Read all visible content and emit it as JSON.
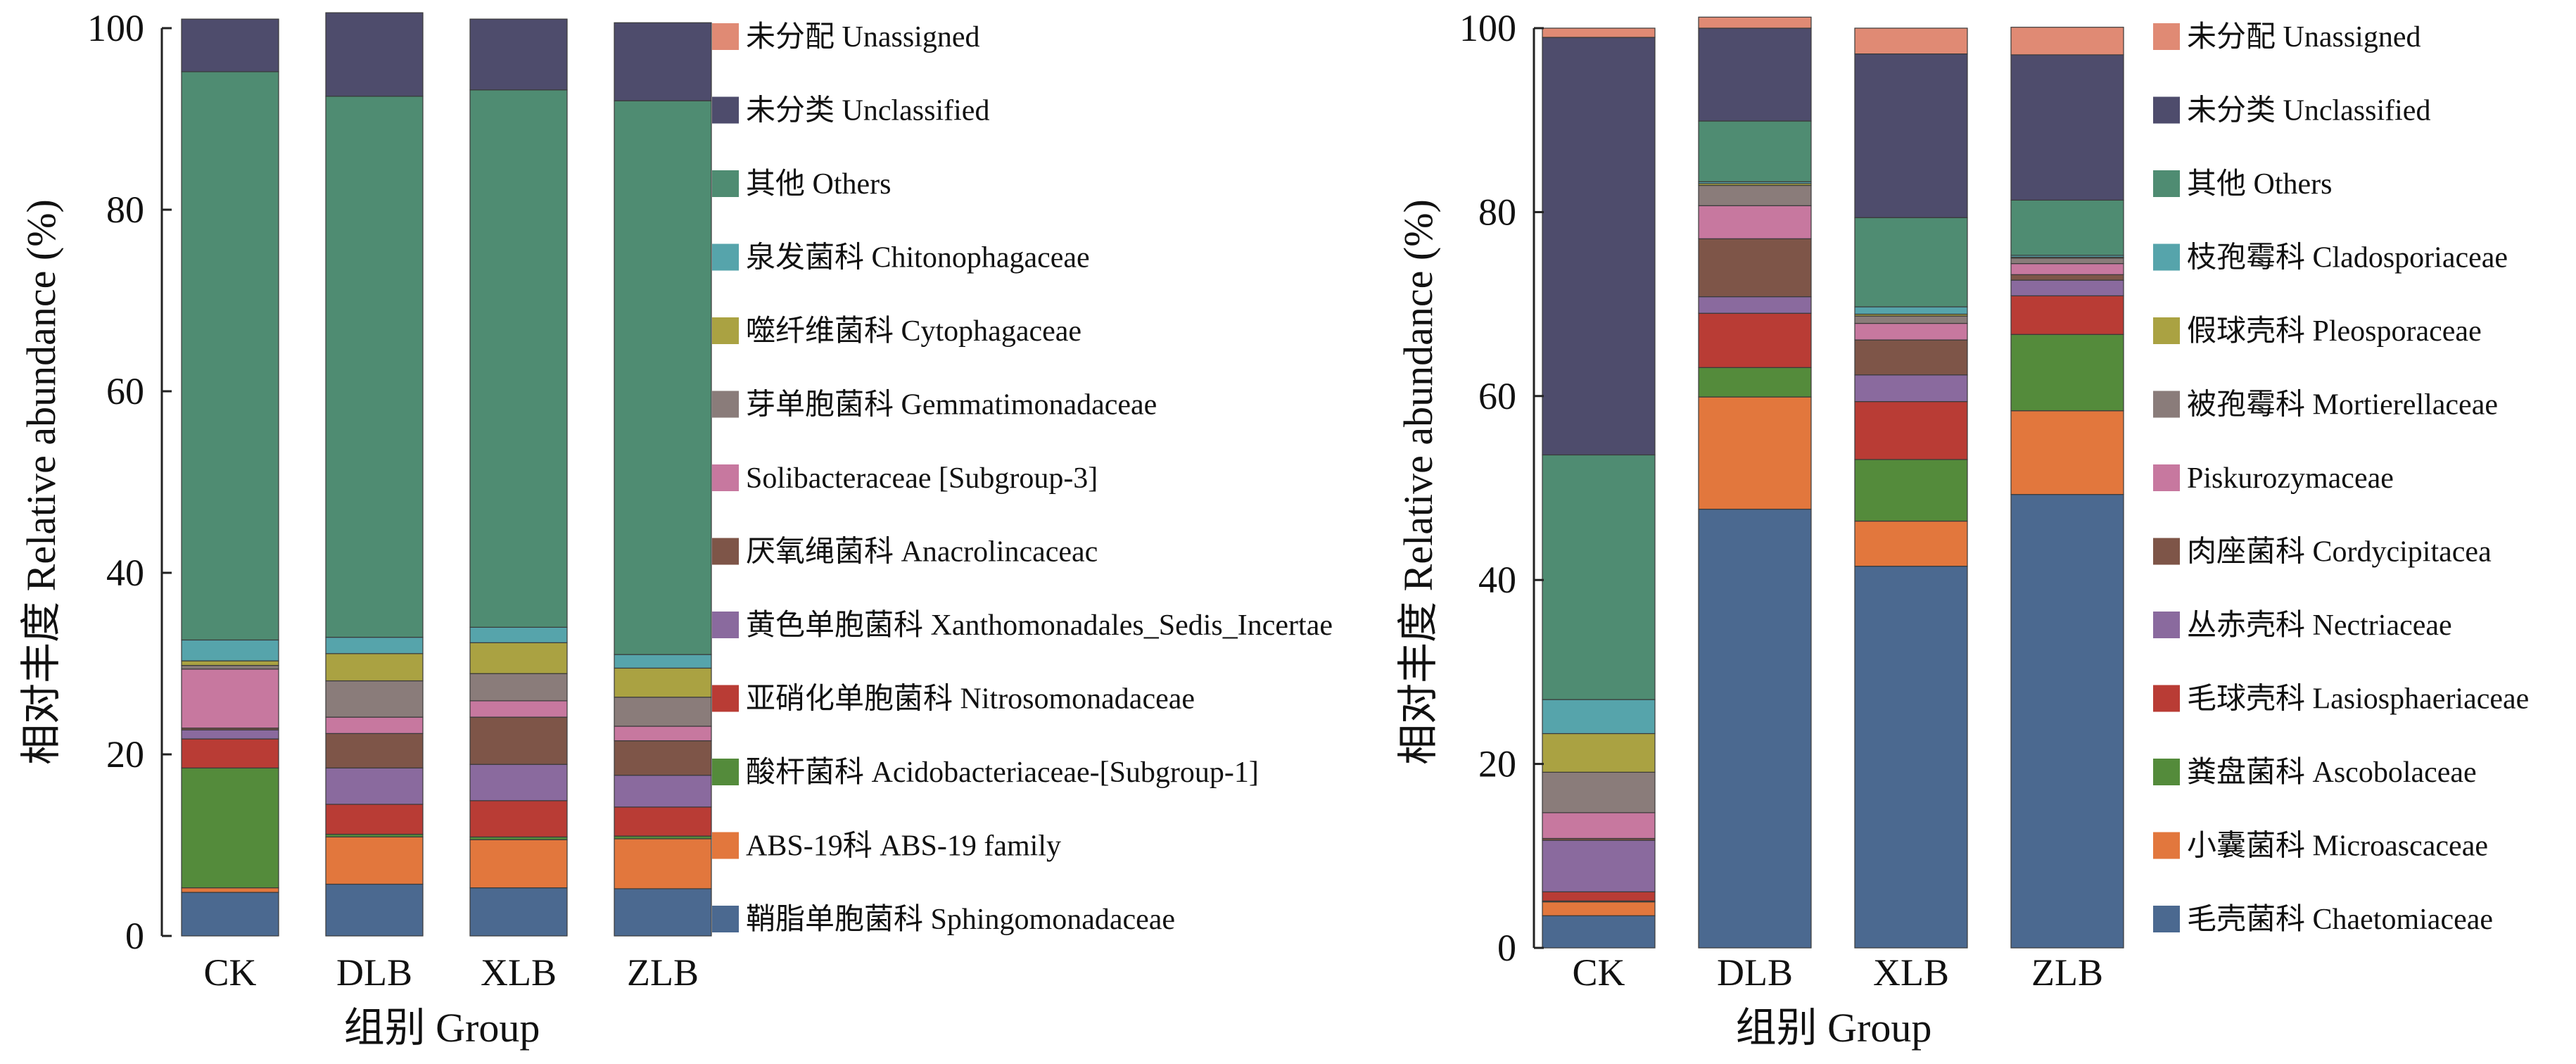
{
  "chart_data": [
    {
      "type": "bar",
      "stacked": true,
      "categories": [
        "CK",
        "DLB",
        "XLB",
        "ZLB"
      ],
      "xlabel": "组别 Group",
      "ylabel": "相对丰度 Relative abundance (%)",
      "ylim": [
        0,
        100
      ],
      "yticks": [
        "0",
        "20",
        "40",
        "60",
        "80",
        "100"
      ],
      "legend_position": "right",
      "series": [
        {
          "name": "鞘脂单胞菌科 Sphingomonadaceae",
          "color": "#4b6990",
          "values": [
            4.8,
            5.7,
            5.3,
            5.2
          ]
        },
        {
          "name": "ABS-19科 ABS-19 family",
          "color": "#e2773d",
          "values": [
            0.5,
            5.2,
            5.3,
            5.5
          ]
        },
        {
          "name": "酸杆菌科 Acidobacteriaceae-[Subgroup-1]",
          "color": "#548b3b",
          "values": [
            13.2,
            0.3,
            0.3,
            0.3
          ]
        },
        {
          "name": "亚硝化单胞菌科 Nitrosomonadaceae",
          "color": "#b93c35",
          "values": [
            3.2,
            3.3,
            4.0,
            3.2
          ]
        },
        {
          "name": "黄色单胞菌科 Xanthomonadales_Sedis_Incertae",
          "color": "#8a6a9e",
          "values": [
            1.0,
            4.0,
            4.0,
            3.5
          ]
        },
        {
          "name": "厌氧绳菌科 Anacrolincaceac",
          "color": "#7e5548",
          "values": [
            0.2,
            3.8,
            5.2,
            3.8
          ]
        },
        {
          "name": "Solibacteraceae [Subgroup-3]",
          "color": "#c7789f",
          "values": [
            6.5,
            1.8,
            1.8,
            1.6
          ]
        },
        {
          "name": "芽单胞菌科 Gemmatimonadaceae",
          "color": "#8a7c7a",
          "values": [
            0.4,
            4.0,
            3.0,
            3.2
          ]
        },
        {
          "name": "噬纤维菌科 Cytophagaceae",
          "color": "#aaa242",
          "values": [
            0.5,
            3.0,
            3.4,
            3.2
          ]
        },
        {
          "name": "泉发菌科 Chitonophagaceae",
          "color": "#56a4ab",
          "values": [
            2.3,
            1.8,
            1.7,
            1.5
          ]
        },
        {
          "name": "其他 Others",
          "color": "#4f8c72",
          "values": [
            62.6,
            59.6,
            59.2,
            61.0
          ]
        },
        {
          "name": "未分类 Unclassified",
          "color": "#4e4c6c",
          "values": [
            5.8,
            9.2,
            7.8,
            8.6
          ]
        },
        {
          "name": "未分配 Unassigned",
          "color": "#e08a74",
          "values": [
            0,
            0,
            0,
            0
          ]
        }
      ]
    },
    {
      "type": "bar",
      "stacked": true,
      "categories": [
        "CK",
        "DLB",
        "XLB",
        "ZLB"
      ],
      "xlabel": "组别 Group",
      "ylabel": "相对丰度 Relative abundance (%)",
      "ylim": [
        0,
        100
      ],
      "yticks": [
        "0",
        "20",
        "40",
        "60",
        "80",
        "100"
      ],
      "legend_position": "right",
      "series": [
        {
          "name": "毛壳菌科 Chaetomiaceae",
          "color": "#4b6990",
          "values": [
            3.5,
            47.7,
            41.5,
            49.3
          ]
        },
        {
          "name": "小囊菌科 Microascaceae",
          "color": "#e2773d",
          "values": [
            1.5,
            12.2,
            4.9,
            9.1
          ]
        },
        {
          "name": "粪盘菌科 Ascobolaceae",
          "color": "#548b3b",
          "values": [
            0.1,
            3.2,
            6.7,
            8.3
          ]
        },
        {
          "name": "毛球壳科 Lasiosphaeriaceae",
          "color": "#b93c35",
          "values": [
            1.0,
            5.9,
            6.3,
            4.2
          ]
        },
        {
          "name": "丛赤壳科 Nectriaceae",
          "color": "#8a6a9e",
          "values": [
            5.6,
            1.8,
            2.9,
            1.7
          ]
        },
        {
          "name": "肉座菌科 Cordycipitacea",
          "color": "#7e5548",
          "values": [
            0.2,
            6.3,
            3.8,
            0.6
          ]
        },
        {
          "name": "Piskurozymaceae",
          "color": "#c7789f",
          "values": [
            2.8,
            3.6,
            1.8,
            1.2
          ]
        },
        {
          "name": "被孢霉科 Mortierellaceae",
          "color": "#8a7c7a",
          "values": [
            4.4,
            2.2,
            0.8,
            0.6
          ]
        },
        {
          "name": "假球壳科 Pleosporaceae",
          "color": "#aaa242",
          "values": [
            4.2,
            0.2,
            0.2,
            0.1
          ]
        },
        {
          "name": "枝孢霉科 Cladosporiaceae",
          "color": "#56a4ab",
          "values": [
            3.7,
            0.2,
            0.8,
            0.2
          ]
        },
        {
          "name": "其他 Others",
          "color": "#4f8c72",
          "values": [
            26.6,
            6.6,
            9.7,
            6.0
          ]
        },
        {
          "name": "未分类 Unclassified",
          "color": "#4e4c6c",
          "values": [
            45.4,
            10.1,
            17.8,
            15.8
          ]
        },
        {
          "name": "未分配 Unassigned",
          "color": "#e08a74",
          "values": [
            1.0,
            1.2,
            2.8,
            3.0
          ]
        }
      ]
    }
  ]
}
